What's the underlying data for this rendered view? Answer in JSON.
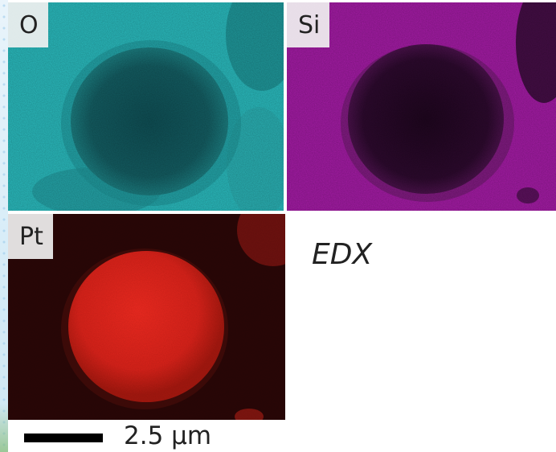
{
  "panels": [
    {
      "element": "O",
      "color": "#27b8bb"
    },
    {
      "element": "Si",
      "color": "#a61aa6"
    },
    {
      "element": "Pt",
      "color": "#d8221a"
    }
  ],
  "technique_label": "EDX",
  "scale_bar": {
    "label": "2.5 µm"
  }
}
